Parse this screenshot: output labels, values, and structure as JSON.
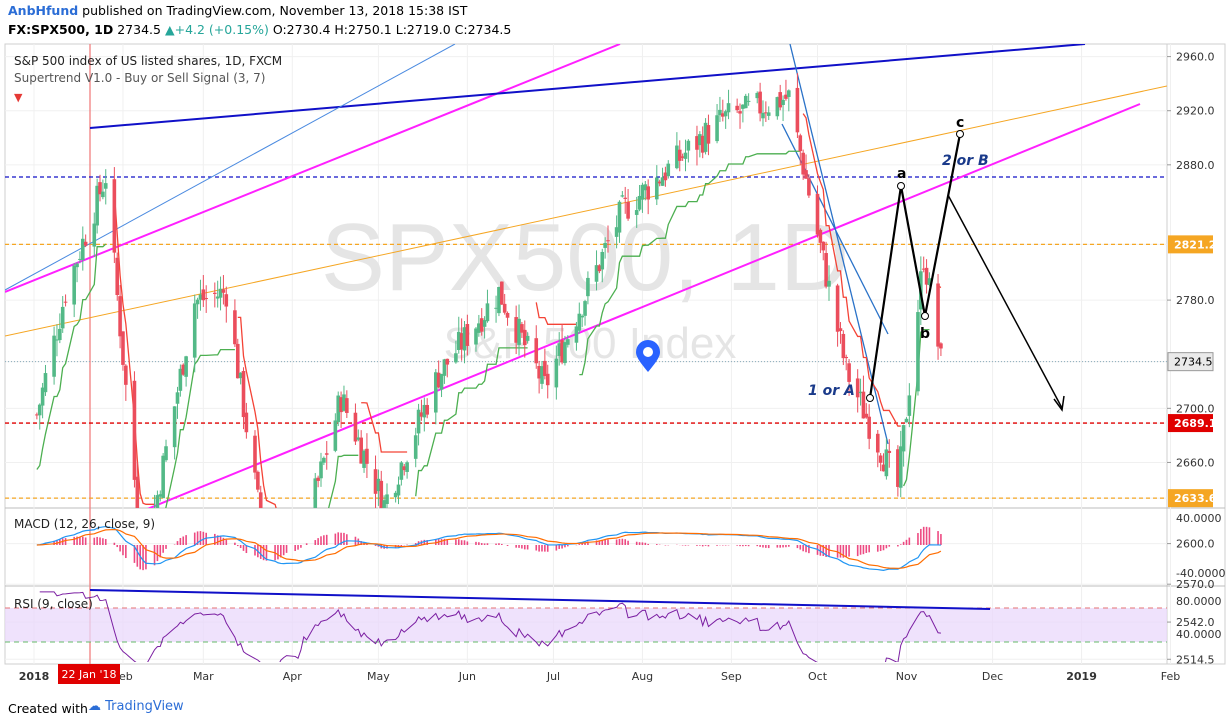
{
  "header": {
    "author": "AnbHfund",
    "published": "published on TradingView.com, November 13, 2018 15:38 IST",
    "symbol_line": {
      "symbol": "FX:SPX500, 1D",
      "price": "2734.5",
      "change": "+4.2 (+0.15%)",
      "open": "O:2730.4",
      "high": "H:2750.1",
      "low": "L:2719.0",
      "close": "C:2734.5"
    }
  },
  "legend": {
    "title": "S&P 500 index of US listed shares, 1D, FXCM",
    "indicator": "Supertrend V1.0 - Buy or Sell Signal (3, 7)"
  },
  "watermark": {
    "symbol": "SPX500, 1D",
    "name": "S&P 500 Index"
  },
  "macd_label": "MACD (12, 26, close, 9)",
  "rsi_label": "RSI (9, close)",
  "footer": {
    "created_with": "Created with",
    "brand": "TradingView"
  },
  "date_badge": "22 Jan '18",
  "colors": {
    "up": "#53b987",
    "down": "#eb4d5c",
    "supertrend_up": "#4caf50",
    "supertrend_down": "#f44336",
    "magenta": "#ff20ff",
    "navy": "#1010c8",
    "orange": "#f5a623",
    "red_level": "#e00000",
    "macd": "#2196f3",
    "signal": "#ff6d00",
    "hist": "#e91e63",
    "rsi": "#7b1fa2"
  },
  "chart_data": {
    "type": "candlestick",
    "symbol": "FX:SPX500",
    "timeframe": "1D",
    "x_axis_labels": [
      "2018",
      "Feb",
      "Mar",
      "Apr",
      "May",
      "Jun",
      "Jul",
      "Aug",
      "Sep",
      "Oct",
      "Nov",
      "Dec",
      "2019",
      "Feb"
    ],
    "y_ticks": [
      2960.0,
      2920.0,
      2880.0,
      2821.2,
      2780.0,
      2734.5,
      2700.0,
      2689.1,
      2660.0,
      2633.6,
      2600.0,
      2570.0,
      2542.0,
      2514.5
    ],
    "y_tick_labels": [
      "2960.0",
      "2920.0",
      "2880.0",
      "2821.2",
      "2780.0",
      "2734.5",
      "2700.0",
      "2689.1",
      "2660.0",
      "2633.6",
      "2600.0",
      "2570.0",
      "2542.0",
      "2514.5"
    ],
    "ylim": [
      2505,
      2975
    ],
    "current_price": 2734.5,
    "levels": [
      {
        "value": 2871.0,
        "label": "2871.0",
        "color": "#1010c8"
      },
      {
        "value": 2821.2,
        "label": "2821.2",
        "color": "#f5a623"
      },
      {
        "value": 2689.1,
        "label": "2689.1",
        "color": "#e00000"
      },
      {
        "value": 2633.6,
        "label": "2633.6",
        "color": "#f5a623"
      }
    ],
    "series": [
      {
        "date": "2018-01-02",
        "close": 2695
      },
      {
        "date": "2018-01-12",
        "close": 2786
      },
      {
        "date": "2018-01-26",
        "close": 2872
      },
      {
        "date": "2018-02-08",
        "close": 2581
      },
      {
        "date": "2018-02-26",
        "close": 2779
      },
      {
        "date": "2018-03-09",
        "close": 2786
      },
      {
        "date": "2018-03-23",
        "close": 2588
      },
      {
        "date": "2018-04-02",
        "close": 2582
      },
      {
        "date": "2018-04-18",
        "close": 2708
      },
      {
        "date": "2018-05-03",
        "close": 2629
      },
      {
        "date": "2018-05-22",
        "close": 2725
      },
      {
        "date": "2018-06-12",
        "close": 2786
      },
      {
        "date": "2018-06-28",
        "close": 2716
      },
      {
        "date": "2018-07-25",
        "close": 2846
      },
      {
        "date": "2018-08-29",
        "close": 2914
      },
      {
        "date": "2018-09-21",
        "close": 2930
      },
      {
        "date": "2018-10-11",
        "close": 2728
      },
      {
        "date": "2018-10-29",
        "close": 2641
      },
      {
        "date": "2018-11-07",
        "close": 2813
      },
      {
        "date": "2018-11-13",
        "close": 2734.5
      }
    ],
    "annotations": [
      {
        "text": "1 or A",
        "value": 2606
      },
      {
        "text": "a",
        "value": 2821.2
      },
      {
        "text": "b",
        "value": 2690
      },
      {
        "text": "2 or B",
        "value": 2830
      },
      {
        "text": "c",
        "value": 2873
      }
    ],
    "macd": {
      "params": "12, 26, close, 9",
      "y_tick_labels": [
        "40.0000",
        "-40.0000"
      ]
    },
    "rsi": {
      "params": "9, close",
      "y_tick_labels": [
        "80.0000",
        "40.0000"
      ]
    }
  }
}
